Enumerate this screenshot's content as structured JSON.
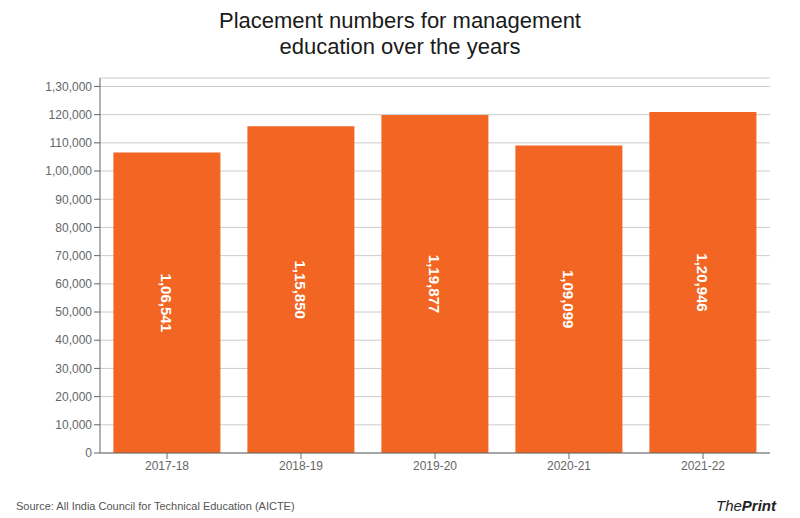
{
  "chart_data": {
    "type": "bar",
    "title": "Placement numbers for management\neducation over the years",
    "categories": [
      "2017-18",
      "2018-19",
      "2019-20",
      "2020-21",
      "2021-22"
    ],
    "values": [
      106541,
      115850,
      119877,
      109099,
      120946
    ],
    "value_labels": [
      "1,06,541",
      "1,15,850",
      "1,19,877",
      "1,09,099",
      "1,20,946"
    ],
    "data_labels": true,
    "color": "#F26522",
    "ylim": [
      0,
      133000
    ],
    "yticks": [
      0,
      {
        "value": 10000,
        "label": "10,000"
      },
      {
        "value": 40000,
        "label": "40,000"
      },
      {
        "value": 70000,
        "label": "70,000"
      },
      {
        "value": 100000,
        "label": "1,00,000"
      },
      {
        "value": 130000,
        "label": "1,30,000"
      },
      {
        "value": 20000,
        "label": "20,000"
      },
      {
        "value": 30000,
        "label": "30,000"
      },
      {
        "value": 50000,
        "label": "50,000"
      },
      {
        "value": 60000,
        "label": "60,000"
      },
      {
        "value": 80000,
        "label": "80,000"
      },
      {
        "value": 90000,
        "label": "90,000"
      },
      {
        "value": 110000,
        "label": "110,000"
      },
      {
        "value": 120000,
        "label": "120,000"
      }
    ],
    "grid": true,
    "annotations": [
      "Source: All India Council for Technical Education (AICTE)",
      "The",
      "Print"
    ]
  }
}
